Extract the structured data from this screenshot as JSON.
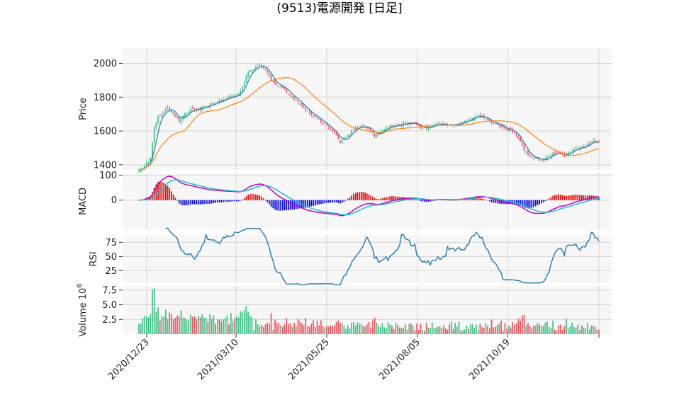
{
  "title": "(9513)電源開発 [日足]",
  "colors": {
    "up": "#3cbf84",
    "down": "#f2525c",
    "sma_short": "#1f77b4",
    "sma_long": "#ff7f0e",
    "macd": "#c000c0",
    "signal": "#20c0c8",
    "hist_pos": "#e00000",
    "hist_neg": "#0000e0",
    "rsi": "#1f77b4",
    "grid": "#d4d4d4",
    "panel_bg": "#f7f7f7"
  },
  "chart_data": {
    "type": "candlestick",
    "x_tick_labels": [
      "2020/12/23",
      "2021/03/10",
      "2021/05/25",
      "2021/08/05",
      "2021/10/19"
    ],
    "x_range": [
      "2020/12/23",
      "2021/12/29"
    ],
    "panels": [
      {
        "name": "price",
        "ylabel": "Price",
        "ylim": [
          1370,
          2090
        ],
        "yticks": [
          "1400",
          "1600",
          "1800",
          "2000"
        ],
        "anchors": [
          [
            0,
            1370
          ],
          [
            3,
            1395
          ],
          [
            6,
            1440
          ],
          [
            8,
            1620
          ],
          [
            10,
            1680
          ],
          [
            12,
            1700
          ],
          [
            15,
            1740
          ],
          [
            18,
            1700
          ],
          [
            21,
            1660
          ],
          [
            24,
            1700
          ],
          [
            27,
            1730
          ],
          [
            30,
            1720
          ],
          [
            33,
            1740
          ],
          [
            36,
            1745
          ],
          [
            39,
            1760
          ],
          [
            42,
            1780
          ],
          [
            45,
            1790
          ],
          [
            48,
            1800
          ],
          [
            51,
            1810
          ],
          [
            54,
            1860
          ],
          [
            57,
            1950
          ],
          [
            60,
            1960
          ],
          [
            63,
            2000
          ],
          [
            66,
            1970
          ],
          [
            69,
            1900
          ],
          [
            72,
            1870
          ],
          [
            75,
            1860
          ],
          [
            78,
            1820
          ],
          [
            81,
            1790
          ],
          [
            84,
            1760
          ],
          [
            87,
            1720
          ],
          [
            90,
            1700
          ],
          [
            93,
            1670
          ],
          [
            96,
            1650
          ],
          [
            99,
            1620
          ],
          [
            102,
            1590
          ],
          [
            105,
            1535
          ],
          [
            108,
            1560
          ],
          [
            111,
            1600
          ],
          [
            114,
            1625
          ],
          [
            117,
            1630
          ],
          [
            120,
            1610
          ],
          [
            123,
            1575
          ],
          [
            126,
            1590
          ],
          [
            129,
            1615
          ],
          [
            132,
            1630
          ],
          [
            135,
            1640
          ],
          [
            138,
            1645
          ],
          [
            141,
            1650
          ],
          [
            144,
            1640
          ],
          [
            147,
            1620
          ],
          [
            150,
            1620
          ],
          [
            153,
            1635
          ],
          [
            156,
            1645
          ],
          [
            159,
            1630
          ],
          [
            162,
            1630
          ],
          [
            165,
            1640
          ],
          [
            168,
            1650
          ],
          [
            171,
            1660
          ],
          [
            174,
            1680
          ],
          [
            177,
            1690
          ],
          [
            180,
            1680
          ],
          [
            183,
            1660
          ],
          [
            186,
            1640
          ],
          [
            189,
            1620
          ],
          [
            192,
            1610
          ],
          [
            195,
            1600
          ],
          [
            198,
            1560
          ],
          [
            201,
            1490
          ],
          [
            204,
            1445
          ],
          [
            207,
            1440
          ],
          [
            210,
            1430
          ],
          [
            213,
            1445
          ],
          [
            216,
            1470
          ],
          [
            219,
            1470
          ],
          [
            222,
            1450
          ],
          [
            225,
            1480
          ],
          [
            228,
            1500
          ],
          [
            231,
            1505
          ],
          [
            234,
            1520
          ],
          [
            237,
            1545
          ],
          [
            240,
            1535
          ]
        ]
      },
      {
        "name": "macd",
        "ylabel": "MACD",
        "ylim": [
          -120,
          110
        ],
        "yticks": [
          "0",
          "100"
        ]
      },
      {
        "name": "rsi",
        "ylabel": "RSI",
        "ylim": [
          3,
          88
        ],
        "yticks": [
          "25",
          "50",
          "75"
        ]
      },
      {
        "name": "volume",
        "ylabel": "Volume",
        "ylabel_exponent": "10",
        "ylabel_power": "6",
        "ylim": [
          0,
          8.2
        ],
        "yticks": [
          "2.5",
          "5.0",
          "7.5"
        ]
      }
    ]
  }
}
